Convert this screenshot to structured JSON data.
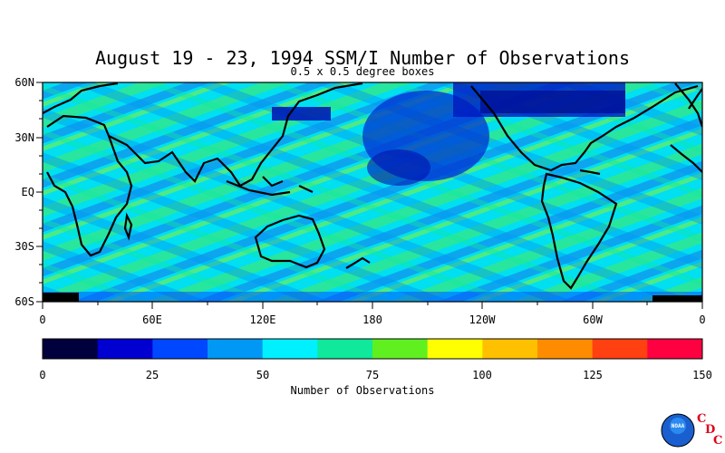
{
  "title": "August 19 - 23, 1994 SSM/I Number of Observations",
  "subtitle": "0.5 x 0.5 degree boxes",
  "lat_labels": [
    "60N",
    "30N",
    "EQ",
    "30S",
    "60S"
  ],
  "lon_labels": [
    "0",
    "60E",
    "120E",
    "180",
    "120W",
    "60W",
    "0"
  ],
  "colorbar": {
    "label": "Number of Observations",
    "ticks": [
      "0",
      "25",
      "50",
      "75",
      "100",
      "125",
      "150"
    ],
    "colors": [
      "#00003c",
      "#0000d0",
      "#0048ff",
      "#0098f4",
      "#00f0ff",
      "#10e89c",
      "#60f020",
      "#ffff00",
      "#ffc000",
      "#ff8c00",
      "#ff4010",
      "#ff0040"
    ]
  },
  "logo": {
    "text": "NOAA",
    "letters": [
      "C",
      "D",
      "C"
    ]
  }
}
